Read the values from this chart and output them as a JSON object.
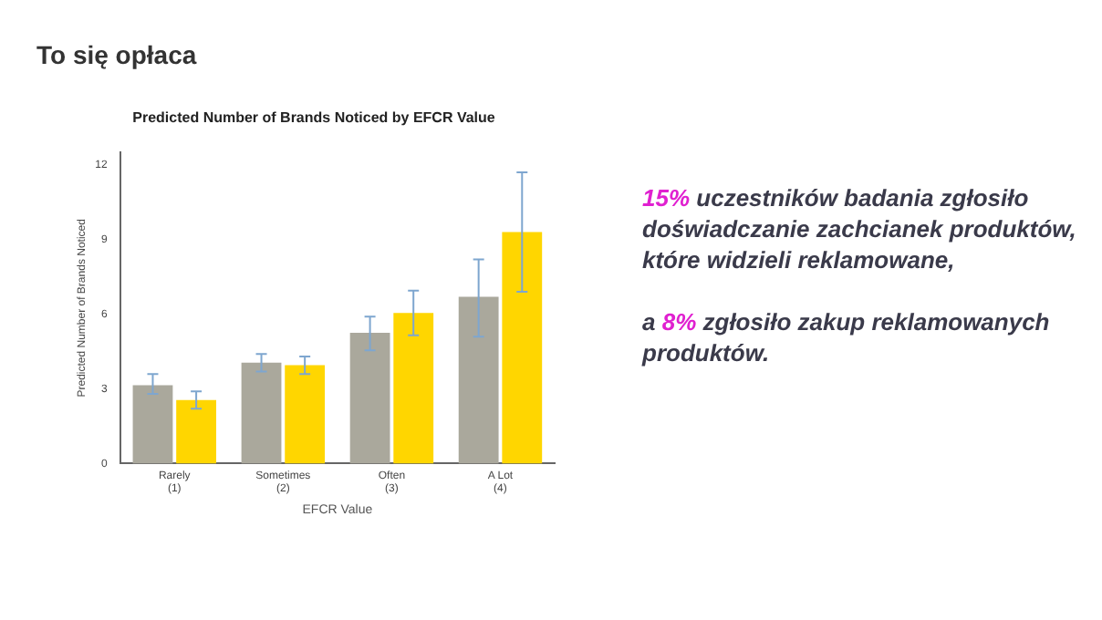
{
  "chart_data": {
    "type": "bar",
    "title": "Predicted Number of Brands Noticed by EFCR Value",
    "xlabel": "EFCR Value",
    "ylabel": "Predicted Number of Brands Noticed",
    "categories": [
      "Rarely\n(1)",
      "Sometimes\n(2)",
      "Often\n(3)",
      "A Lot\n(4)"
    ],
    "series": [
      {
        "color": "#aaa89c",
        "values": [
          3.15,
          4.05,
          5.25,
          6.7
        ],
        "errors": [
          [
            2.8,
            3.6
          ],
          [
            3.7,
            4.4
          ],
          [
            4.55,
            5.9
          ],
          [
            5.1,
            8.2
          ]
        ]
      },
      {
        "color": "#ffd600",
        "values": [
          2.55,
          3.95,
          6.05,
          9.3
        ],
        "errors": [
          [
            2.2,
            2.9
          ],
          [
            3.6,
            4.3
          ],
          [
            5.15,
            6.95
          ],
          [
            6.9,
            11.7
          ]
        ]
      }
    ],
    "ylim": [
      0,
      12.5
    ],
    "yticks": [
      0,
      3,
      6,
      9,
      12
    ],
    "grid": false,
    "legend": false,
    "annotations": [
      "To się opłaca",
      "15% uczestników badania zgłosiło doświadczanie zachcianek produktów, które widzieli reklamowane,",
      "a 8% zgłosiło zakup reklamowanych produktów."
    ]
  }
}
